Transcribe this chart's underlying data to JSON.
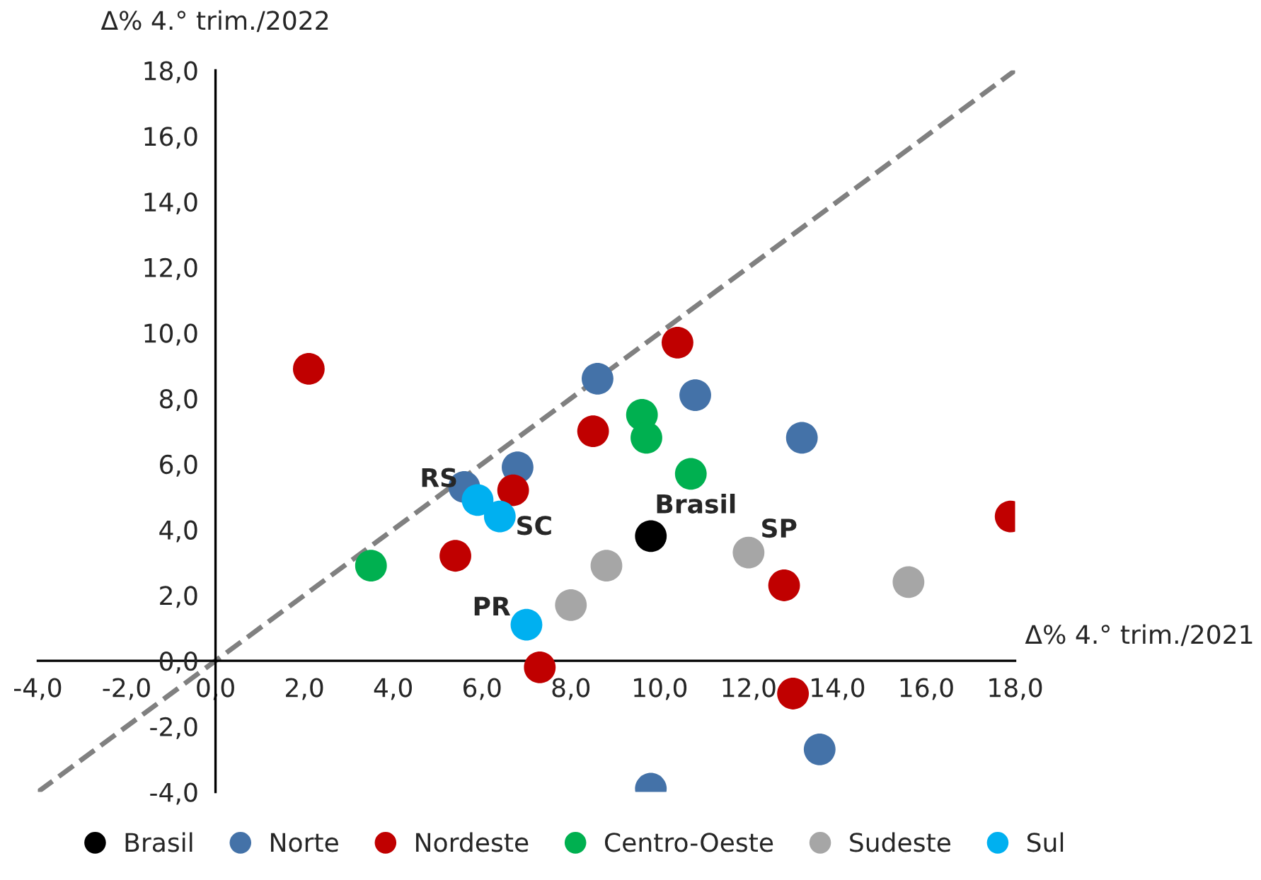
{
  "chart_data": {
    "type": "scatter",
    "xlabel": "Δ% 4.° trim./2021",
    "ylabel": "Δ% 4.° trim./2022",
    "xlim": [
      -4,
      18
    ],
    "ylim": [
      -4,
      18
    ],
    "xticks": [
      {
        "value": -4,
        "label": "-4,0"
      },
      {
        "value": -2,
        "label": "-2,0"
      },
      {
        "value": 0,
        "label": "0,0"
      },
      {
        "value": 2,
        "label": "2,0"
      },
      {
        "value": 4,
        "label": "4,0"
      },
      {
        "value": 6,
        "label": "6,0"
      },
      {
        "value": 8,
        "label": "8,0"
      },
      {
        "value": 10,
        "label": "10,0"
      },
      {
        "value": 12,
        "label": "12,0"
      },
      {
        "value": 14,
        "label": "14,0"
      },
      {
        "value": 16,
        "label": "16,0"
      },
      {
        "value": 18,
        "label": "18,0"
      }
    ],
    "yticks": [
      {
        "value": -4,
        "label": "-4,0"
      },
      {
        "value": -2,
        "label": "-2,0"
      },
      {
        "value": 0,
        "label": "0,0"
      },
      {
        "value": 2,
        "label": "2,0"
      },
      {
        "value": 4,
        "label": "4,0"
      },
      {
        "value": 6,
        "label": "6,0"
      },
      {
        "value": 8,
        "label": "8,0"
      },
      {
        "value": 10,
        "label": "10,0"
      },
      {
        "value": 12,
        "label": "12,0"
      },
      {
        "value": 14,
        "label": "14,0"
      },
      {
        "value": 16,
        "label": "16,0"
      },
      {
        "value": 18,
        "label": "18,0"
      }
    ],
    "grid": false,
    "legend": "bottom",
    "marker": "circle",
    "series": [
      {
        "name": "Brasil",
        "color": "#000000",
        "x": [
          9.8
        ],
        "values": [
          3.8
        ]
      },
      {
        "name": "Norte",
        "color": "#4472a8",
        "x": [
          5.6,
          6.8,
          8.6,
          10.8,
          13.2,
          13.6,
          9.8
        ],
        "values": [
          5.3,
          5.9,
          8.6,
          8.1,
          6.8,
          -2.7,
          -3.9
        ]
      },
      {
        "name": "Nordeste",
        "color": "#c00000",
        "x": [
          2.1,
          10.4,
          8.5,
          6.7,
          5.4,
          7.3,
          12.8,
          13.0,
          17.9
        ],
        "values": [
          8.9,
          9.7,
          7.0,
          5.2,
          3.2,
          -0.2,
          2.3,
          -1.0,
          4.4
        ]
      },
      {
        "name": "Centro-Oeste",
        "color": "#00b050",
        "x": [
          3.5,
          9.6,
          9.7,
          10.7
        ],
        "values": [
          2.9,
          7.5,
          6.8,
          5.7
        ]
      },
      {
        "name": "Sudeste",
        "color": "#a6a6a6",
        "x": [
          8.0,
          8.8,
          12.0,
          15.6
        ],
        "values": [
          1.7,
          2.9,
          3.3,
          2.4
        ]
      },
      {
        "name": "Sul",
        "color": "#00b0f0",
        "x": [
          5.9,
          6.4,
          7.0
        ],
        "values": [
          4.9,
          4.4,
          1.1
        ]
      },
      {
        "type": "line",
        "color": "#808080",
        "line_style": "dashed",
        "marker": "none",
        "x": [
          -4,
          18
        ],
        "values": [
          -4,
          18
        ]
      }
    ],
    "annotations": [
      {
        "text": "Brasil",
        "x": 9.8,
        "y": 3.8
      },
      {
        "text": "SP",
        "x": 12.0,
        "y": 3.3
      },
      {
        "text": "RS",
        "x": 5.9,
        "y": 4.9
      },
      {
        "text": "SC",
        "x": 6.4,
        "y": 4.4
      },
      {
        "text": "PR",
        "x": 7.0,
        "y": 1.1
      }
    ]
  }
}
